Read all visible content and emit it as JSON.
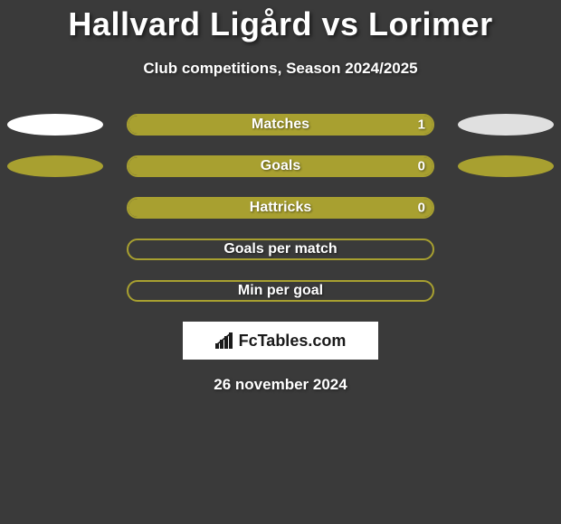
{
  "title": "Hallvard Ligård vs Lorimer",
  "subtitle": "Club competitions, Season 2024/2025",
  "date": "26 november 2024",
  "brand": "FcTables.com",
  "colors": {
    "background": "#3a3a3a",
    "title": "#ffffff",
    "pill_fill": "#a8a030",
    "pill_border": "#a8a030",
    "pill_label": "#ffffff",
    "ellipse_left": "#ffffff",
    "ellipse_right": "#e0e0e0",
    "ellipse_olive": "#a8a030"
  },
  "rows": [
    {
      "label": "Matches",
      "value_left": "1",
      "fill_pct": 100,
      "show_left_ellipse": true,
      "left_ellipse_color": "#ffffff",
      "show_right_ellipse": true,
      "right_ellipse_color": "#e0e0e0"
    },
    {
      "label": "Goals",
      "value_left": "0",
      "fill_pct": 100,
      "show_left_ellipse": true,
      "left_ellipse_color": "#a8a030",
      "show_right_ellipse": true,
      "right_ellipse_color": "#a8a030"
    },
    {
      "label": "Hattricks",
      "value_left": "0",
      "fill_pct": 100,
      "show_left_ellipse": false,
      "show_right_ellipse": false
    },
    {
      "label": "Goals per match",
      "value_left": "",
      "fill_pct": 0,
      "show_left_ellipse": false,
      "show_right_ellipse": false
    },
    {
      "label": "Min per goal",
      "value_left": "",
      "fill_pct": 0,
      "show_left_ellipse": false,
      "show_right_ellipse": false
    }
  ],
  "typography": {
    "title_fontsize": 36,
    "subtitle_fontsize": 17,
    "pill_label_fontsize": 16,
    "date_fontsize": 17
  }
}
